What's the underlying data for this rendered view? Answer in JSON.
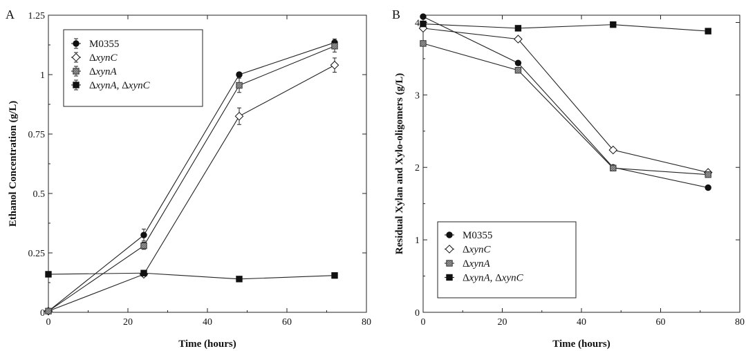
{
  "chart_data": [
    {
      "type": "line",
      "panel": "A",
      "xlabel": "Time (hours)",
      "ylabel": "Ethanol Concentration (g/L)",
      "xlim": [
        0,
        80
      ],
      "ylim": [
        0,
        1.25
      ],
      "xticks": [
        "0",
        "20",
        "40",
        "60",
        "80"
      ],
      "yticks": [
        "0",
        "0.25",
        "0.5",
        "0.75",
        "1",
        "1.25"
      ],
      "grid": false,
      "legend_position": "top-left",
      "x": [
        0,
        24,
        48,
        72
      ],
      "series": [
        {
          "name_prefix": "",
          "name_gene1": "M0355",
          "name_sep": "",
          "name_gene2": "",
          "marker": "filled-circle",
          "values": [
            0.005,
            0.325,
            1.0,
            1.135
          ],
          "errors": [
            0.005,
            0.025,
            0.01,
            0.015
          ]
        },
        {
          "name_prefix": "Δ",
          "name_gene1": "xynC",
          "name_sep": "",
          "name_gene2": "",
          "marker": "open-diamond",
          "values": [
            0.005,
            0.16,
            0.825,
            1.04
          ],
          "errors": [
            0.005,
            0.01,
            0.035,
            0.03
          ]
        },
        {
          "name_prefix": "Δ",
          "name_gene1": "xynA",
          "name_sep": "",
          "name_gene2": "",
          "marker": "gray-hatched-square",
          "values": [
            0.005,
            0.28,
            0.955,
            1.12
          ],
          "errors": [
            0.005,
            0.015,
            0.03,
            0.025
          ]
        },
        {
          "name_prefix": "Δ",
          "name_gene1": "xynA",
          "name_sep": ", Δ",
          "name_gene2": "xynC",
          "marker": "filled-square",
          "values": [
            0.16,
            0.165,
            0.14,
            0.155
          ],
          "errors": [
            0.005,
            0.005,
            0.005,
            0.005
          ]
        }
      ]
    },
    {
      "type": "line",
      "panel": "B",
      "xlabel": "Time (hours)",
      "ylabel": "Residual Xylan and Xylo-oligomers (g/L)",
      "xlim": [
        0,
        80
      ],
      "ylim": [
        0,
        4.1
      ],
      "xticks": [
        "0",
        "20",
        "40",
        "60",
        "80"
      ],
      "yticks": [
        "0",
        "1",
        "2",
        "3",
        "4"
      ],
      "grid": false,
      "legend_position": "bottom-left",
      "x": [
        0,
        24,
        48,
        72
      ],
      "series": [
        {
          "name_prefix": "",
          "name_gene1": "M0355",
          "name_sep": "",
          "name_gene2": "",
          "marker": "filled-circle",
          "values": [
            4.08,
            3.44,
            2.0,
            1.72
          ]
        },
        {
          "name_prefix": "Δ",
          "name_gene1": "xynC",
          "name_sep": "",
          "name_gene2": "",
          "marker": "open-diamond",
          "values": [
            3.92,
            3.77,
            2.24,
            1.93
          ]
        },
        {
          "name_prefix": "Δ",
          "name_gene1": "xynA",
          "name_sep": "",
          "name_gene2": "",
          "marker": "gray-hatched-square",
          "values": [
            3.71,
            3.34,
            1.99,
            1.9
          ]
        },
        {
          "name_prefix": "Δ",
          "name_gene1": "xynA",
          "name_sep": ", Δ",
          "name_gene2": "xynC",
          "marker": "filled-square",
          "values": [
            3.98,
            3.92,
            3.97,
            3.88
          ]
        }
      ]
    }
  ]
}
